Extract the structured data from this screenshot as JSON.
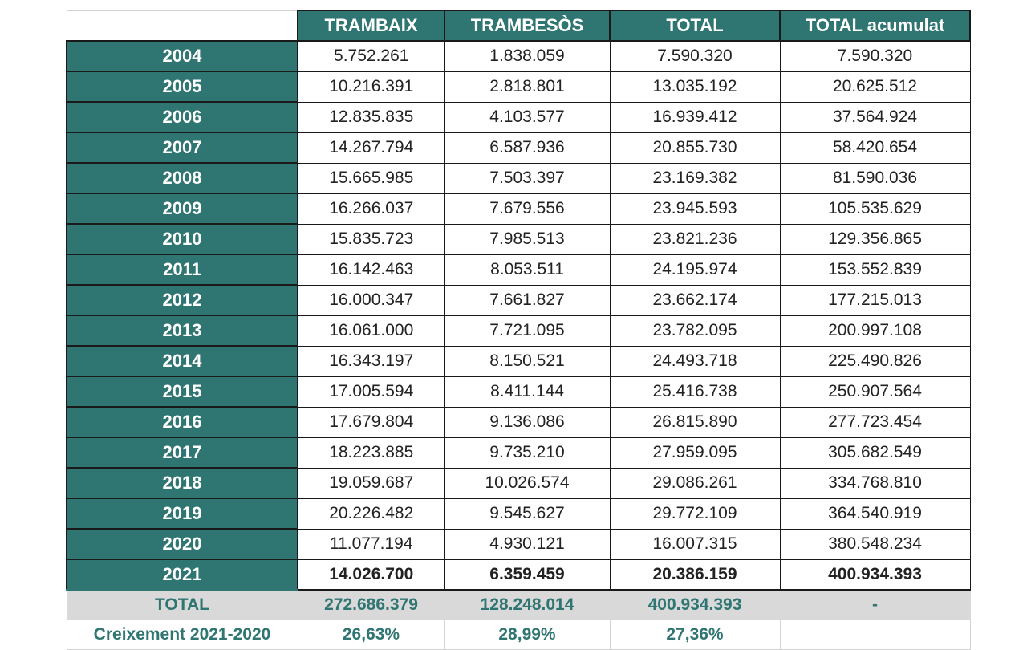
{
  "header": {
    "col1": "TRAMBAIX",
    "col2": "TRAMBESÒS",
    "col3": "TOTAL",
    "col4": "TOTAL acumulat"
  },
  "rows": [
    {
      "year": "2004",
      "trambaix": "5.752.261",
      "trambesos": "1.838.059",
      "total": "7.590.320",
      "acumulat": "7.590.320"
    },
    {
      "year": "2005",
      "trambaix": "10.216.391",
      "trambesos": "2.818.801",
      "total": "13.035.192",
      "acumulat": "20.625.512"
    },
    {
      "year": "2006",
      "trambaix": "12.835.835",
      "trambesos": "4.103.577",
      "total": "16.939.412",
      "acumulat": "37.564.924"
    },
    {
      "year": "2007",
      "trambaix": "14.267.794",
      "trambesos": "6.587.936",
      "total": "20.855.730",
      "acumulat": "58.420.654"
    },
    {
      "year": "2008",
      "trambaix": "15.665.985",
      "trambesos": "7.503.397",
      "total": "23.169.382",
      "acumulat": "81.590.036"
    },
    {
      "year": "2009",
      "trambaix": "16.266.037",
      "trambesos": "7.679.556",
      "total": "23.945.593",
      "acumulat": "105.535.629"
    },
    {
      "year": "2010",
      "trambaix": "15.835.723",
      "trambesos": "7.985.513",
      "total": "23.821.236",
      "acumulat": "129.356.865"
    },
    {
      "year": "2011",
      "trambaix": "16.142.463",
      "trambesos": "8.053.511",
      "total": "24.195.974",
      "acumulat": "153.552.839"
    },
    {
      "year": "2012",
      "trambaix": "16.000.347",
      "trambesos": "7.661.827",
      "total": "23.662.174",
      "acumulat": "177.215.013"
    },
    {
      "year": "2013",
      "trambaix": "16.061.000",
      "trambesos": "7.721.095",
      "total": "23.782.095",
      "acumulat": "200.997.108"
    },
    {
      "year": "2014",
      "trambaix": "16.343.197",
      "trambesos": "8.150.521",
      "total": "24.493.718",
      "acumulat": "225.490.826"
    },
    {
      "year": "2015",
      "trambaix": "17.005.594",
      "trambesos": "8.411.144",
      "total": "25.416.738",
      "acumulat": "250.907.564"
    },
    {
      "year": "2016",
      "trambaix": "17.679.804",
      "trambesos": "9.136.086",
      "total": "26.815.890",
      "acumulat": "277.723.454"
    },
    {
      "year": "2017",
      "trambaix": "18.223.885",
      "trambesos": "9.735.210",
      "total": "27.959.095",
      "acumulat": "305.682.549"
    },
    {
      "year": "2018",
      "trambaix": "19.059.687",
      "trambesos": "10.026.574",
      "total": "29.086.261",
      "acumulat": "334.768.810"
    },
    {
      "year": "2019",
      "trambaix": "20.226.482",
      "trambesos": "9.545.627",
      "total": "29.772.109",
      "acumulat": "364.540.919"
    },
    {
      "year": "2020",
      "trambaix": "11.077.194",
      "trambesos": "4.930.121",
      "total": "16.007.315",
      "acumulat": "380.548.234"
    },
    {
      "year": "2021",
      "trambaix": "14.026.700",
      "trambesos": "6.359.459",
      "total": "20.386.159",
      "acumulat": "400.934.393",
      "bold": true
    }
  ],
  "totals": {
    "label": "TOTAL",
    "trambaix": "272.686.379",
    "trambesos": "128.248.014",
    "total": "400.934.393",
    "acumulat": "-"
  },
  "growth": {
    "label": "Creixement 2021-2020",
    "trambaix": "26,63%",
    "trambesos": "28,99%",
    "total": "27,36%",
    "acumulat": ""
  },
  "colors": {
    "teal": "#2f7572",
    "total_row_bg": "#d9d9d9",
    "border": "#1a1a1a"
  }
}
